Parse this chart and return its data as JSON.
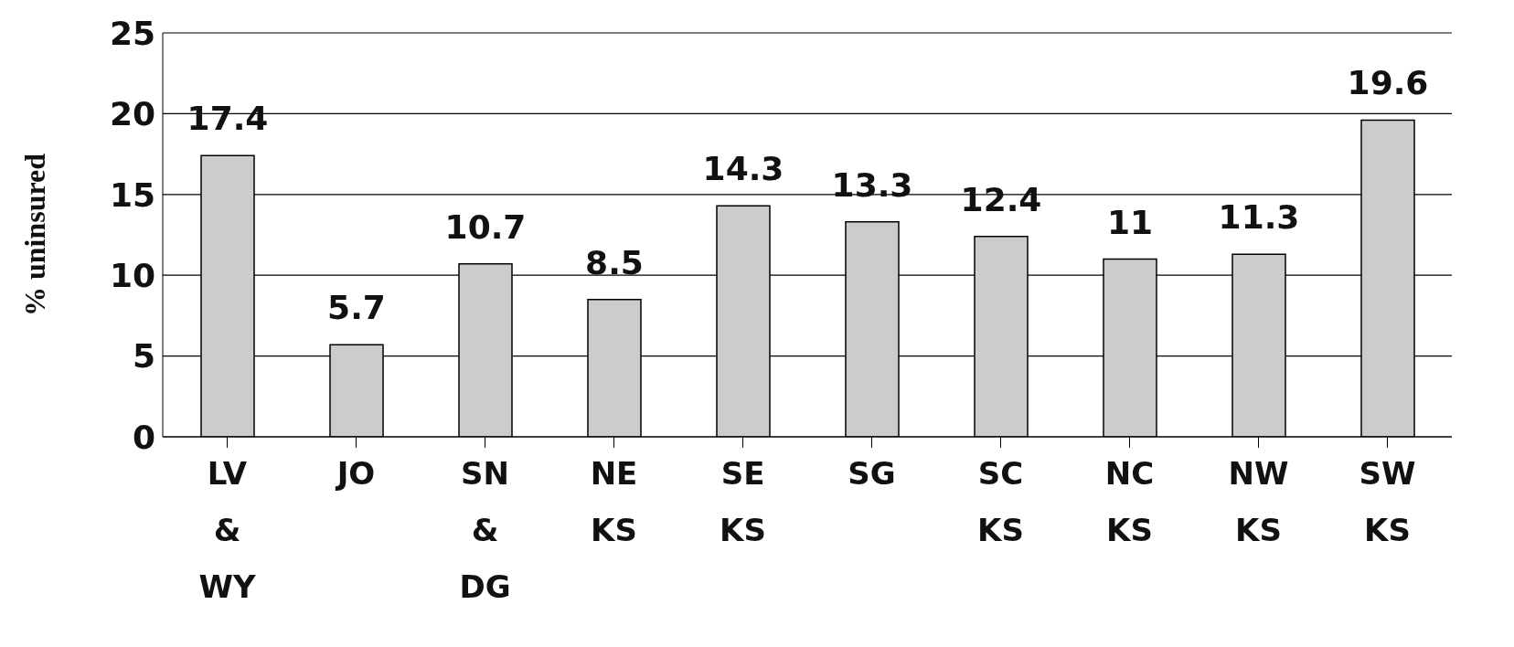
{
  "chart_data": {
    "type": "bar",
    "ylabel": "% uninsured",
    "categories": [
      "LV & WY",
      "JO",
      "SN & DG",
      "NE KS",
      "SE KS",
      "SG",
      "SC KS",
      "NC KS",
      "NW KS",
      "SW KS"
    ],
    "values": [
      17.4,
      5.7,
      10.7,
      8.5,
      14.3,
      13.3,
      12.4,
      11,
      11.3,
      19.6
    ],
    "color": "#cccccc",
    "ylim": [
      0,
      25
    ],
    "yticks": [
      0,
      5,
      10,
      15,
      20,
      25
    ],
    "grid": "y",
    "data_labels": true,
    "legend": false
  }
}
